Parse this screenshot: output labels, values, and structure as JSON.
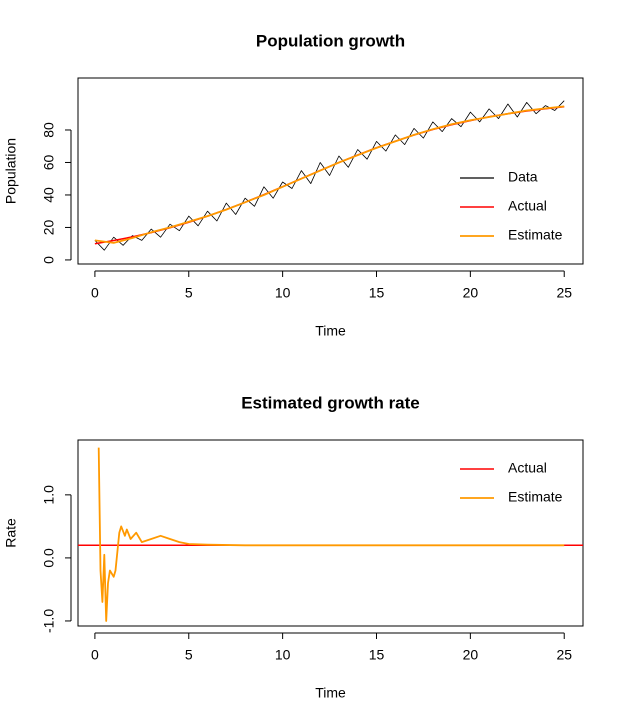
{
  "chart_data": [
    {
      "type": "line",
      "title": "Population growth",
      "xlabel": "Time",
      "ylabel": "Population",
      "xlim": [
        -0.9,
        26.0
      ],
      "ylim": [
        -2.5,
        112
      ],
      "xticks": [
        0,
        5,
        10,
        15,
        20,
        25
      ],
      "yticks": [
        0,
        20,
        40,
        60,
        80
      ],
      "legend": "bottomright",
      "series": [
        {
          "name": "Data",
          "color": "#000000",
          "line_width": 0.8,
          "x": [
            0,
            0.5,
            1,
            1.5,
            2,
            2.5,
            3,
            3.5,
            4,
            4.5,
            5,
            5.5,
            6,
            6.5,
            7,
            7.5,
            8,
            8.5,
            9,
            9.5,
            10,
            10.5,
            11,
            11.5,
            12,
            12.5,
            13,
            13.5,
            14,
            14.5,
            15,
            15.5,
            16,
            16.5,
            17,
            17.5,
            18,
            18.5,
            19,
            19.5,
            20,
            20.5,
            21,
            21.5,
            22,
            22.5,
            23,
            23.5,
            24,
            24.5,
            25
          ],
          "values": [
            12,
            6,
            14,
            9,
            15,
            12,
            19,
            14,
            22,
            18,
            27,
            21,
            30,
            24,
            35,
            28,
            38,
            33,
            45,
            38,
            48,
            44,
            55,
            47,
            60,
            52,
            64,
            57,
            68,
            62,
            73,
            67,
            77,
            71,
            81,
            75,
            85,
            79,
            87,
            82,
            91,
            85,
            93,
            87,
            96,
            88,
            97,
            90,
            95,
            92,
            98
          ]
        },
        {
          "name": "Actual",
          "color": "#ff0000",
          "line_width": 1.5,
          "x": [
            0,
            1,
            2,
            3,
            4,
            5,
            6,
            7,
            8,
            9,
            10,
            11,
            12,
            13,
            14,
            15,
            16,
            17,
            18,
            19,
            20,
            21,
            22,
            23,
            24,
            25
          ],
          "values": [
            10,
            11.95,
            14.2,
            16.8,
            19.8,
            23.2,
            26.9,
            31.1,
            35.5,
            40.2,
            45.1,
            50.1,
            55.1,
            59.9,
            64.6,
            69.1,
            73.1,
            76.9,
            80.3,
            83.2,
            85.8,
            88.1,
            90.0,
            91.7,
            93.1,
            94.3
          ]
        },
        {
          "name": "Estimate",
          "color": "#ff9900",
          "line_width": 1.8,
          "x": [
            0,
            1,
            2,
            3,
            4,
            5,
            6,
            7,
            8,
            9,
            10,
            11,
            12,
            13,
            14,
            15,
            16,
            17,
            18,
            19,
            20,
            21,
            22,
            23,
            24,
            25
          ],
          "values": [
            12,
            10.5,
            13.5,
            17,
            20,
            23.5,
            27,
            31,
            35.5,
            40,
            45,
            50,
            55,
            60,
            64.5,
            69,
            73,
            77,
            80.5,
            83.5,
            86,
            88,
            90,
            92,
            93.3,
            94.5
          ]
        }
      ]
    },
    {
      "type": "line",
      "title": "Estimated growth rate",
      "xlabel": "Time",
      "ylabel": "Rate",
      "xlim": [
        -0.9,
        26.0
      ],
      "ylim": [
        -1.08,
        1.87
      ],
      "xticks": [
        0,
        5,
        10,
        15,
        20,
        25
      ],
      "yticks": [
        {
          "value": -1,
          "label": "-1.0"
        },
        {
          "value": 0,
          "label": "0.0"
        },
        {
          "value": 1,
          "label": "1.0"
        }
      ],
      "legend": "topright",
      "series": [
        {
          "name": "Actual",
          "color": "#ff0000",
          "line_width": 1.5,
          "hline": 0.2
        },
        {
          "name": "Estimate",
          "color": "#ff9900",
          "line_width": 1.8,
          "x": [
            0.2,
            0.3,
            0.4,
            0.5,
            0.6,
            0.7,
            0.8,
            1.0,
            1.1,
            1.3,
            1.4,
            1.6,
            1.7,
            1.9,
            2.2,
            2.5,
            3.0,
            3.5,
            4.0,
            4.5,
            5,
            6,
            8,
            10,
            15,
            20,
            25
          ],
          "values": [
            1.75,
            -0.2,
            -0.7,
            0.05,
            -1.0,
            -0.4,
            -0.2,
            -0.3,
            -0.2,
            0.4,
            0.5,
            0.35,
            0.45,
            0.3,
            0.4,
            0.25,
            0.3,
            0.35,
            0.3,
            0.25,
            0.22,
            0.21,
            0.2,
            0.2,
            0.2,
            0.2,
            0.2
          ]
        }
      ]
    }
  ]
}
